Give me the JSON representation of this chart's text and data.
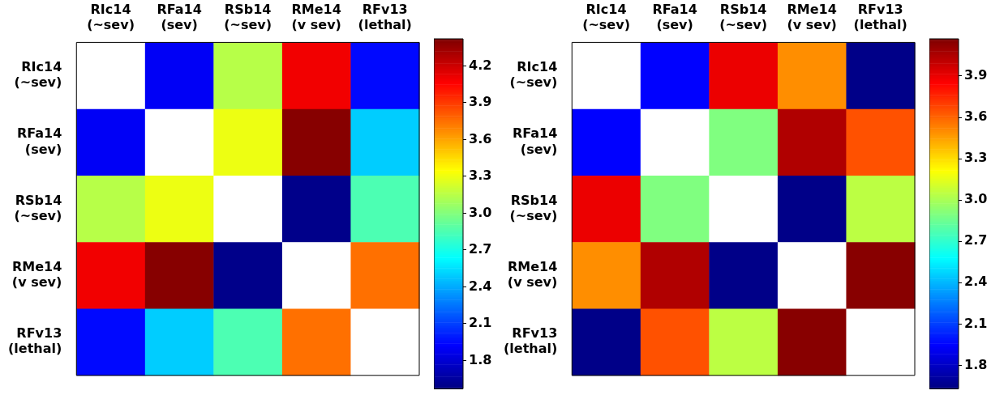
{
  "chart_data": [
    {
      "type": "heatmap",
      "categories": [
        "RIc14 (~sev)",
        "RFa14 (sev)",
        "RSb14 (~sev)",
        "RMe14 (v sev)",
        "RFv13 (lethal)"
      ],
      "y_categories": [
        "RIc14 (~sev)",
        "RFa14 (sev)",
        "RSb14 (~sev)",
        "RMe14 (v sev)",
        "RFv13 (lethal)"
      ],
      "cells": [
        [
          null,
          1.9,
          3.15,
          4.1,
          1.95
        ],
        [
          1.9,
          null,
          3.3,
          4.4,
          2.5
        ],
        [
          3.15,
          3.3,
          null,
          1.6,
          2.85
        ],
        [
          4.1,
          4.4,
          1.6,
          null,
          3.75
        ],
        [
          1.95,
          2.5,
          2.85,
          3.75,
          null
        ]
      ],
      "clim": [
        1.57,
        4.42
      ],
      "cticks": [
        1.8,
        2.1,
        2.4,
        2.7,
        {
          "value": 3,
          "label": "3.0"
        },
        3.3,
        3.6,
        3.9,
        4.2
      ]
    },
    {
      "type": "heatmap",
      "categories": [
        "RIc14 (~sev)",
        "RFa14 (sev)",
        "RSb14 (~sev)",
        "RMe14 (v sev)",
        "RFv13 (lethal)"
      ],
      "y_categories": [
        "RIc14 (~sev)",
        "RFa14 (sev)",
        "RSb14 (~sev)",
        "RMe14 (v sev)",
        "RFv13 (lethal)"
      ],
      "cells": [
        [
          null,
          1.95,
          3.9,
          3.5,
          1.65
        ],
        [
          1.95,
          null,
          2.9,
          4.05,
          3.65
        ],
        [
          3.9,
          2.9,
          null,
          1.65,
          3.05
        ],
        [
          3.5,
          4.05,
          1.65,
          null,
          4.15
        ],
        [
          1.65,
          3.65,
          3.05,
          4.15,
          null
        ]
      ],
      "clim": [
        1.63,
        4.17
      ],
      "cticks": [
        1.8,
        2.1,
        2.4,
        2.7,
        {
          "value": 3,
          "label": "3.0"
        },
        3.3,
        3.6,
        3.9
      ]
    }
  ]
}
